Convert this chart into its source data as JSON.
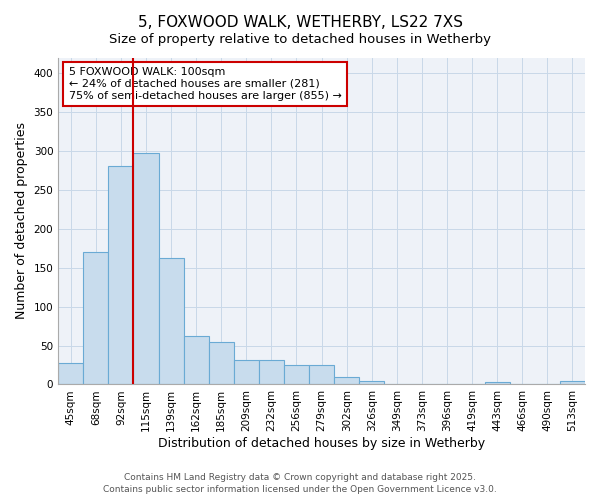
{
  "title_line1": "5, FOXWOOD WALK, WETHERBY, LS22 7XS",
  "title_line2": "Size of property relative to detached houses in Wetherby",
  "xlabel": "Distribution of detached houses by size in Wetherby",
  "ylabel": "Number of detached properties",
  "categories": [
    "45sqm",
    "68sqm",
    "92sqm",
    "115sqm",
    "139sqm",
    "162sqm",
    "185sqm",
    "209sqm",
    "232sqm",
    "256sqm",
    "279sqm",
    "302sqm",
    "326sqm",
    "349sqm",
    "373sqm",
    "396sqm",
    "419sqm",
    "443sqm",
    "466sqm",
    "490sqm",
    "513sqm"
  ],
  "values": [
    28,
    170,
    280,
    297,
    163,
    62,
    54,
    31,
    31,
    25,
    25,
    9,
    5,
    0,
    0,
    0,
    0,
    3,
    0,
    0,
    4
  ],
  "bar_color": "#c8dced",
  "bar_edge_color": "#6aaad4",
  "annotation_line1": "5 FOXWOOD WALK: 100sqm",
  "annotation_line2": "← 24% of detached houses are smaller (281)",
  "annotation_line3": "75% of semi-detached houses are larger (855) →",
  "annotation_box_color": "white",
  "annotation_box_edge_color": "#cc0000",
  "vline_x": 2.5,
  "vline_color": "#cc0000",
  "ylim": [
    0,
    420
  ],
  "yticks": [
    0,
    50,
    100,
    150,
    200,
    250,
    300,
    350,
    400
  ],
  "grid_color": "#c8d8e8",
  "plot_bg_color": "#eef2f8",
  "footer_line1": "Contains HM Land Registry data © Crown copyright and database right 2025.",
  "footer_line2": "Contains public sector information licensed under the Open Government Licence v3.0.",
  "title_fontsize": 11,
  "subtitle_fontsize": 9.5,
  "axis_label_fontsize": 9,
  "tick_fontsize": 7.5,
  "annotation_fontsize": 8,
  "footer_fontsize": 6.5
}
